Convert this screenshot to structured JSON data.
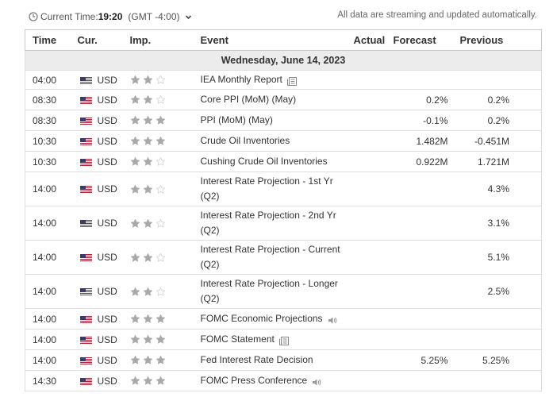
{
  "header": {
    "current_time_label": "Current Time:",
    "current_time_value": "19:20",
    "timezone": "(GMT -4:00)",
    "streaming_note": "All data are streaming and updated automatically."
  },
  "columns": {
    "time": "Time",
    "currency": "Cur.",
    "importance": "Imp.",
    "event": "Event",
    "actual": "Actual",
    "forecast": "Forecast",
    "previous": "Previous"
  },
  "date_row": "Wednesday, June 14, 2023",
  "events": [
    {
      "time": "04:00",
      "currency": "USD",
      "importance": 2,
      "event": "IEA Monthly Report",
      "icon": "document-icon",
      "actual": "",
      "forecast": "",
      "previous": ""
    },
    {
      "time": "08:30",
      "currency": "USD",
      "importance": 2,
      "event": "Core PPI (MoM) (May)",
      "icon": "",
      "actual": "",
      "forecast": "0.2%",
      "previous": "0.2%"
    },
    {
      "time": "08:30",
      "currency": "USD",
      "importance": 3,
      "event": "PPI (MoM) (May)",
      "icon": "",
      "actual": "",
      "forecast": "-0.1%",
      "previous": "0.2%"
    },
    {
      "time": "10:30",
      "currency": "USD",
      "importance": 3,
      "event": "Crude Oil Inventories",
      "icon": "",
      "actual": "",
      "forecast": "1.482M",
      "previous": "-0.451M"
    },
    {
      "time": "10:30",
      "currency": "USD",
      "importance": 2,
      "event": "Cushing Crude Oil Inventories",
      "icon": "",
      "actual": "",
      "forecast": "0.922M",
      "previous": "1.721M"
    },
    {
      "time": "14:00",
      "currency": "USD",
      "importance": 2,
      "event": "Interest Rate Projection - 1st Yr (Q2)",
      "icon": "",
      "actual": "",
      "forecast": "",
      "previous": "4.3%"
    },
    {
      "time": "14:00",
      "currency": "USD",
      "importance": 2,
      "event": "Interest Rate Projection - 2nd Yr (Q2)",
      "icon": "",
      "actual": "",
      "forecast": "",
      "previous": "3.1%"
    },
    {
      "time": "14:00",
      "currency": "USD",
      "importance": 2,
      "event": "Interest Rate Projection - Current (Q2)",
      "icon": "",
      "actual": "",
      "forecast": "",
      "previous": "5.1%"
    },
    {
      "time": "14:00",
      "currency": "USD",
      "importance": 2,
      "event": "Interest Rate Projection - Longer (Q2)",
      "icon": "",
      "actual": "",
      "forecast": "",
      "previous": "2.5%"
    },
    {
      "time": "14:00",
      "currency": "USD",
      "importance": 3,
      "event": "FOMC Economic Projections",
      "icon": "speaker-icon",
      "actual": "",
      "forecast": "",
      "previous": ""
    },
    {
      "time": "14:00",
      "currency": "USD",
      "importance": 3,
      "event": "FOMC Statement",
      "icon": "document-icon",
      "actual": "",
      "forecast": "",
      "previous": ""
    },
    {
      "time": "14:00",
      "currency": "USD",
      "importance": 3,
      "event": "Fed Interest Rate Decision",
      "icon": "",
      "actual": "",
      "forecast": "5.25%",
      "previous": "5.25%"
    },
    {
      "time": "14:30",
      "currency": "USD",
      "importance": 3,
      "event": "FOMC Press Conference",
      "icon": "speaker-icon",
      "actual": "",
      "forecast": "",
      "previous": ""
    }
  ],
  "colors": {
    "star_filled": "#a9a9a9",
    "star_empty": "#d0d0d0",
    "date_row_bg": "#ececec",
    "flag_red": "#b22234",
    "flag_blue": "#3c3b6e"
  }
}
